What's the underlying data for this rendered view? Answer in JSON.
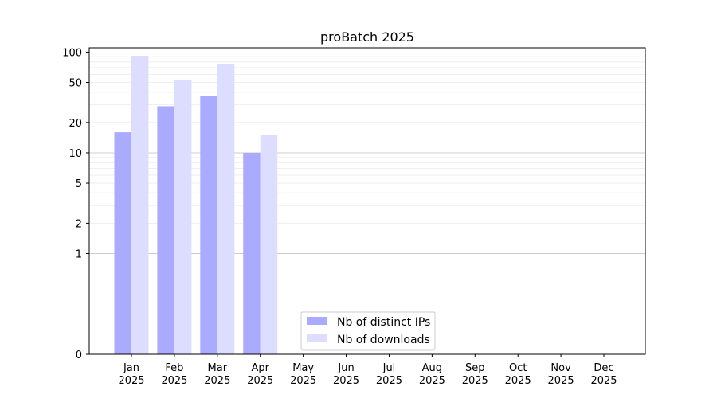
{
  "chart_data": {
    "type": "bar",
    "title": "proBatch 2025",
    "xlabel": "",
    "ylabel": "",
    "y_scale": "symlog",
    "y_ticks": [
      0,
      1,
      2,
      5,
      10,
      20,
      50,
      100
    ],
    "categories": [
      {
        "month": "Jan",
        "year": "2025"
      },
      {
        "month": "Feb",
        "year": "2025"
      },
      {
        "month": "Mar",
        "year": "2025"
      },
      {
        "month": "Apr",
        "year": "2025"
      },
      {
        "month": "May",
        "year": "2025"
      },
      {
        "month": "Jun",
        "year": "2025"
      },
      {
        "month": "Jul",
        "year": "2025"
      },
      {
        "month": "Aug",
        "year": "2025"
      },
      {
        "month": "Sep",
        "year": "2025"
      },
      {
        "month": "Oct",
        "year": "2025"
      },
      {
        "month": "Nov",
        "year": "2025"
      },
      {
        "month": "Dec",
        "year": "2025"
      }
    ],
    "series": [
      {
        "name": "Nb of distinct IPs",
        "color": "#aaaaff",
        "values": [
          16,
          29,
          37,
          10,
          0,
          0,
          0,
          0,
          0,
          0,
          0,
          0
        ]
      },
      {
        "name": "Nb of downloads",
        "color": "#ddddff",
        "values": [
          92,
          53,
          76,
          15,
          0,
          0,
          0,
          0,
          0,
          0,
          0,
          0
        ]
      }
    ],
    "legend_position": "bottom-center",
    "grid": true
  }
}
